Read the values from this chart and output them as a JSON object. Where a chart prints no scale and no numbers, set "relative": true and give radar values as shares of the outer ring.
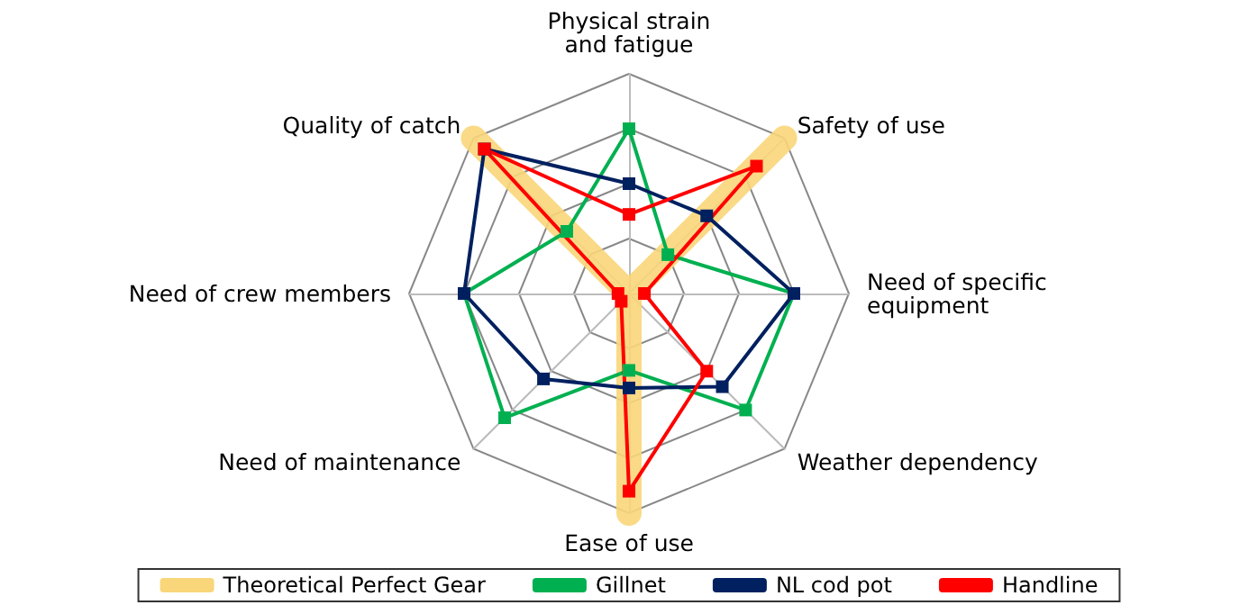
{
  "chart_data": {
    "type": "radar",
    "relative": true,
    "categories": [
      "Physical strain and fatigue",
      "Safety of use",
      "Need of specific equipment",
      "Weather dependency",
      "Ease of use",
      "Need of maintenance",
      "Need of crew members",
      "Quality of catch"
    ],
    "series": [
      {
        "name": "Theoretical Perfect Gear",
        "color": "#f9d67a",
        "marker": "none",
        "values": [
          0,
          1,
          0,
          0,
          1,
          0,
          0,
          1
        ]
      },
      {
        "name": "Gillnet",
        "color": "#00b050",
        "values": [
          0.75,
          0.25,
          0.75,
          0.75,
          0.35,
          0.8,
          0.75,
          0.4
        ]
      },
      {
        "name": "NL cod pot",
        "color": "#002060",
        "values": [
          0.5,
          0.5,
          0.75,
          0.6,
          0.43,
          0.55,
          0.75,
          0.93
        ]
      },
      {
        "name": "Handline",
        "color": "#ff0000",
        "values": [
          0.36,
          0.82,
          0.07,
          0.5,
          0.9,
          0.05,
          0.05,
          0.93
        ]
      }
    ],
    "marker": "square",
    "legend": "bottom"
  }
}
